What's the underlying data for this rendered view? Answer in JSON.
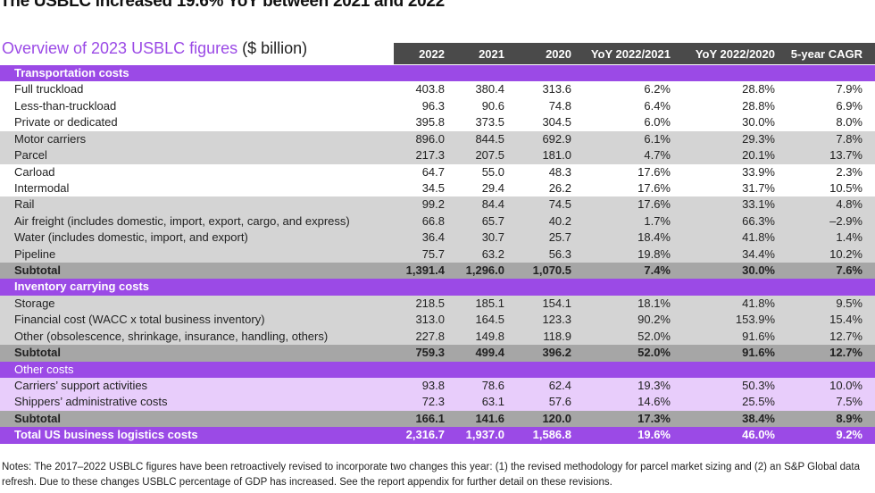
{
  "title": "The USBLC increased 19.6% YoY between 2021 and 2022",
  "subtitle": {
    "accent": "Overview of 2023 USBLC figures",
    "unit": " ($ billion)"
  },
  "columns": [
    "2022",
    "2021",
    "2020",
    "YoY 2022/2021",
    "YoY 2022/2020",
    "5-year CAGR"
  ],
  "colors": {
    "purple": "#9b4ae6",
    "header": "#4a4a4a",
    "gray": "#d4d4d4",
    "subtotal": "#a6a6a6",
    "lavender": "#e8cdfb"
  },
  "rows": [
    {
      "type": "sec",
      "label": "Transportation costs",
      "values": []
    },
    {
      "type": "white",
      "label": "Full truckload",
      "values": [
        "403.8",
        "380.4",
        "313.6",
        "6.2%",
        "28.8%",
        "7.9%"
      ]
    },
    {
      "type": "white",
      "label": "Less-than-truckload",
      "values": [
        "96.3",
        "90.6",
        "74.8",
        "6.4%",
        "28.8%",
        "6.9%"
      ]
    },
    {
      "type": "white",
      "label": "Private or dedicated",
      "values": [
        "395.8",
        "373.5",
        "304.5",
        "6.0%",
        "30.0%",
        "8.0%"
      ]
    },
    {
      "type": "gray",
      "label": "Motor carriers",
      "values": [
        "896.0",
        "844.5",
        "692.9",
        "6.1%",
        "29.3%",
        "7.8%"
      ]
    },
    {
      "type": "gray",
      "label": "Parcel",
      "values": [
        "217.3",
        "207.5",
        "181.0",
        "4.7%",
        "20.1%",
        "13.7%"
      ]
    },
    {
      "type": "white",
      "label": "Carload",
      "values": [
        "64.7",
        "55.0",
        "48.3",
        "17.6%",
        "33.9%",
        "2.3%"
      ]
    },
    {
      "type": "white",
      "label": "Intermodal",
      "values": [
        "34.5",
        "29.4",
        "26.2",
        "17.6%",
        "31.7%",
        "10.5%"
      ]
    },
    {
      "type": "gray",
      "label": "Rail",
      "values": [
        "99.2",
        "84.4",
        "74.5",
        "17.6%",
        "33.1%",
        "4.8%"
      ]
    },
    {
      "type": "gray",
      "label": "Air freight (includes domestic, import, export, cargo, and express)",
      "values": [
        "66.8",
        "65.7",
        "40.2",
        "1.7%",
        "66.3%",
        "–2.9%"
      ]
    },
    {
      "type": "gray",
      "label": "Water (includes domestic, import, and export)",
      "values": [
        "36.4",
        "30.7",
        "25.7",
        "18.4%",
        "41.8%",
        "1.4%"
      ]
    },
    {
      "type": "gray",
      "label": "Pipeline",
      "values": [
        "75.7",
        "63.2",
        "56.3",
        "19.8%",
        "34.4%",
        "10.2%"
      ]
    },
    {
      "type": "sub",
      "label": "Subtotal",
      "values": [
        "1,391.4",
        "1,296.0",
        "1,070.5",
        "7.4%",
        "30.0%",
        "7.6%"
      ]
    },
    {
      "type": "sec",
      "label": "Inventory carrying costs",
      "values": []
    },
    {
      "type": "gray",
      "label": "Storage",
      "values": [
        "218.5",
        "185.1",
        "154.1",
        "18.1%",
        "41.8%",
        "9.5%"
      ]
    },
    {
      "type": "gray",
      "label": "Financial cost (WACC x total business inventory)",
      "values": [
        "313.0",
        "164.5",
        "123.3",
        "90.2%",
        "153.9%",
        "15.4%"
      ]
    },
    {
      "type": "gray",
      "label": "Other (obsolescence, shrinkage, insurance, handling, others)",
      "values": [
        "227.8",
        "149.8",
        "118.9",
        "52.0%",
        "91.6%",
        "12.7%"
      ]
    },
    {
      "type": "sub",
      "label": "Subtotal",
      "values": [
        "759.3",
        "499.4",
        "396.2",
        "52.0%",
        "91.6%",
        "12.7%"
      ]
    },
    {
      "type": "secl",
      "label": "Other costs",
      "values": []
    },
    {
      "type": "lav",
      "label": "Carriers’ support activities",
      "values": [
        "93.8",
        "78.6",
        "62.4",
        "19.3%",
        "50.3%",
        "10.0%"
      ]
    },
    {
      "type": "lav",
      "label": "Shippers’ administrative costs",
      "values": [
        "72.3",
        "63.1",
        "57.6",
        "14.6%",
        "25.5%",
        "7.5%"
      ]
    },
    {
      "type": "sub",
      "label": "Subtotal",
      "values": [
        "166.1",
        "141.6",
        "120.0",
        "17.3%",
        "38.4%",
        "8.9%"
      ]
    },
    {
      "type": "tot",
      "label": "Total US business logistics costs",
      "values": [
        "2,316.7",
        "1,937.0",
        "1,586.8",
        "19.6%",
        "46.0%",
        "9.2%"
      ]
    }
  ],
  "notes": "Notes: The 2017–2022 USBLC figures have been retroactively revised to incorporate two changes this year: (1) the revised methodology for parcel market sizing and (2) an S&P Global data refresh. Due to these changes USBLC percentage of GDP has increased. See the report appendix for further detail on these revisions."
}
